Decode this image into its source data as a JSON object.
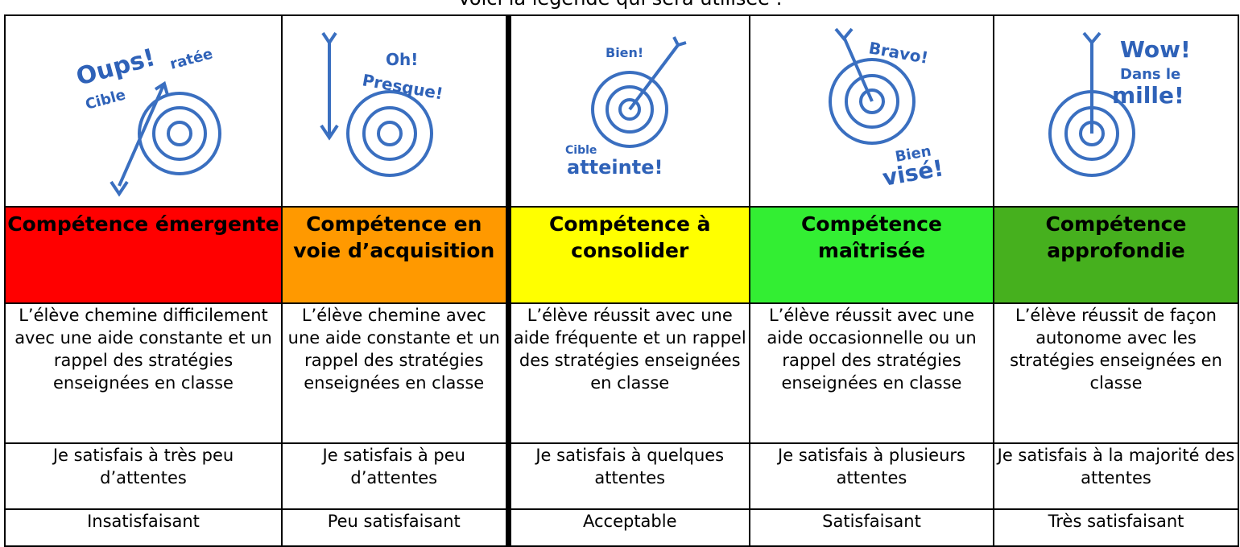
{
  "caption": "Voici la légende qui sera utilisée :",
  "columns": [
    {
      "icon_text": [
        "Oups!",
        "Cible",
        "ratée"
      ],
      "level": "Compétence émergente",
      "description": "L’élève chemine difficilement avec une aide constante et un rappel des stratégies enseignées en classe",
      "expectations": "Je satisfais à très peu d’attentes",
      "rating": "Insatisfaisant"
    },
    {
      "icon_text": [
        "Oh!",
        "Presque!"
      ],
      "level": "Compétence en voie d’acquisition",
      "description": "L’élève chemine avec une aide constante et un rappel des stratégies enseignées en classe",
      "expectations": "Je satisfais à peu d’attentes",
      "rating": "Peu satisfaisant"
    },
    {
      "icon_text": [
        "Bien!",
        "Cible",
        "atteinte!"
      ],
      "level": "Compétence à consolider",
      "description": "L’élève réussit avec une aide fréquente et un rappel des stratégies enseignées en classe",
      "expectations": "Je satisfais à quelques attentes",
      "rating": "Acceptable"
    },
    {
      "icon_text": [
        "Bravo!",
        "Bien",
        "visé!"
      ],
      "level": "Compétence maîtrisée",
      "description": "L’élève réussit avec une aide occasionnelle ou un rappel des stratégies enseignées en classe",
      "expectations": "Je satisfais à plusieurs attentes",
      "rating": "Satisfaisant"
    },
    {
      "icon_text": [
        "Wow!",
        "Dans le",
        "mille!"
      ],
      "level": "Compétence approfondie",
      "description": "L’élève réussit de façon autonome avec les stratégies enseignées en classe",
      "expectations": "Je satisfais à la majorité des attentes",
      "rating": "Très satisfaisant"
    }
  ]
}
